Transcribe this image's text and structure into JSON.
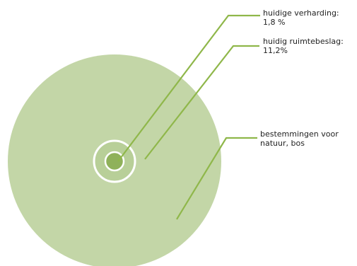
{
  "colors": {
    "outer_fill": "#c3d6a7",
    "ring_fill": "#b8cf98",
    "center_fill": "#8fb15a",
    "ring_stroke": "#ffffff",
    "leader_line": "#8fb74a"
  },
  "labels": {
    "hard_surface": {
      "name": "huidige verharding:",
      "value": "1,8 %"
    },
    "space_use": {
      "name": "huidig ruimtebeslag:",
      "value": "11,2%"
    },
    "nature": {
      "line1": "bestemmingen voor",
      "line2": "natuur, bos"
    }
  }
}
